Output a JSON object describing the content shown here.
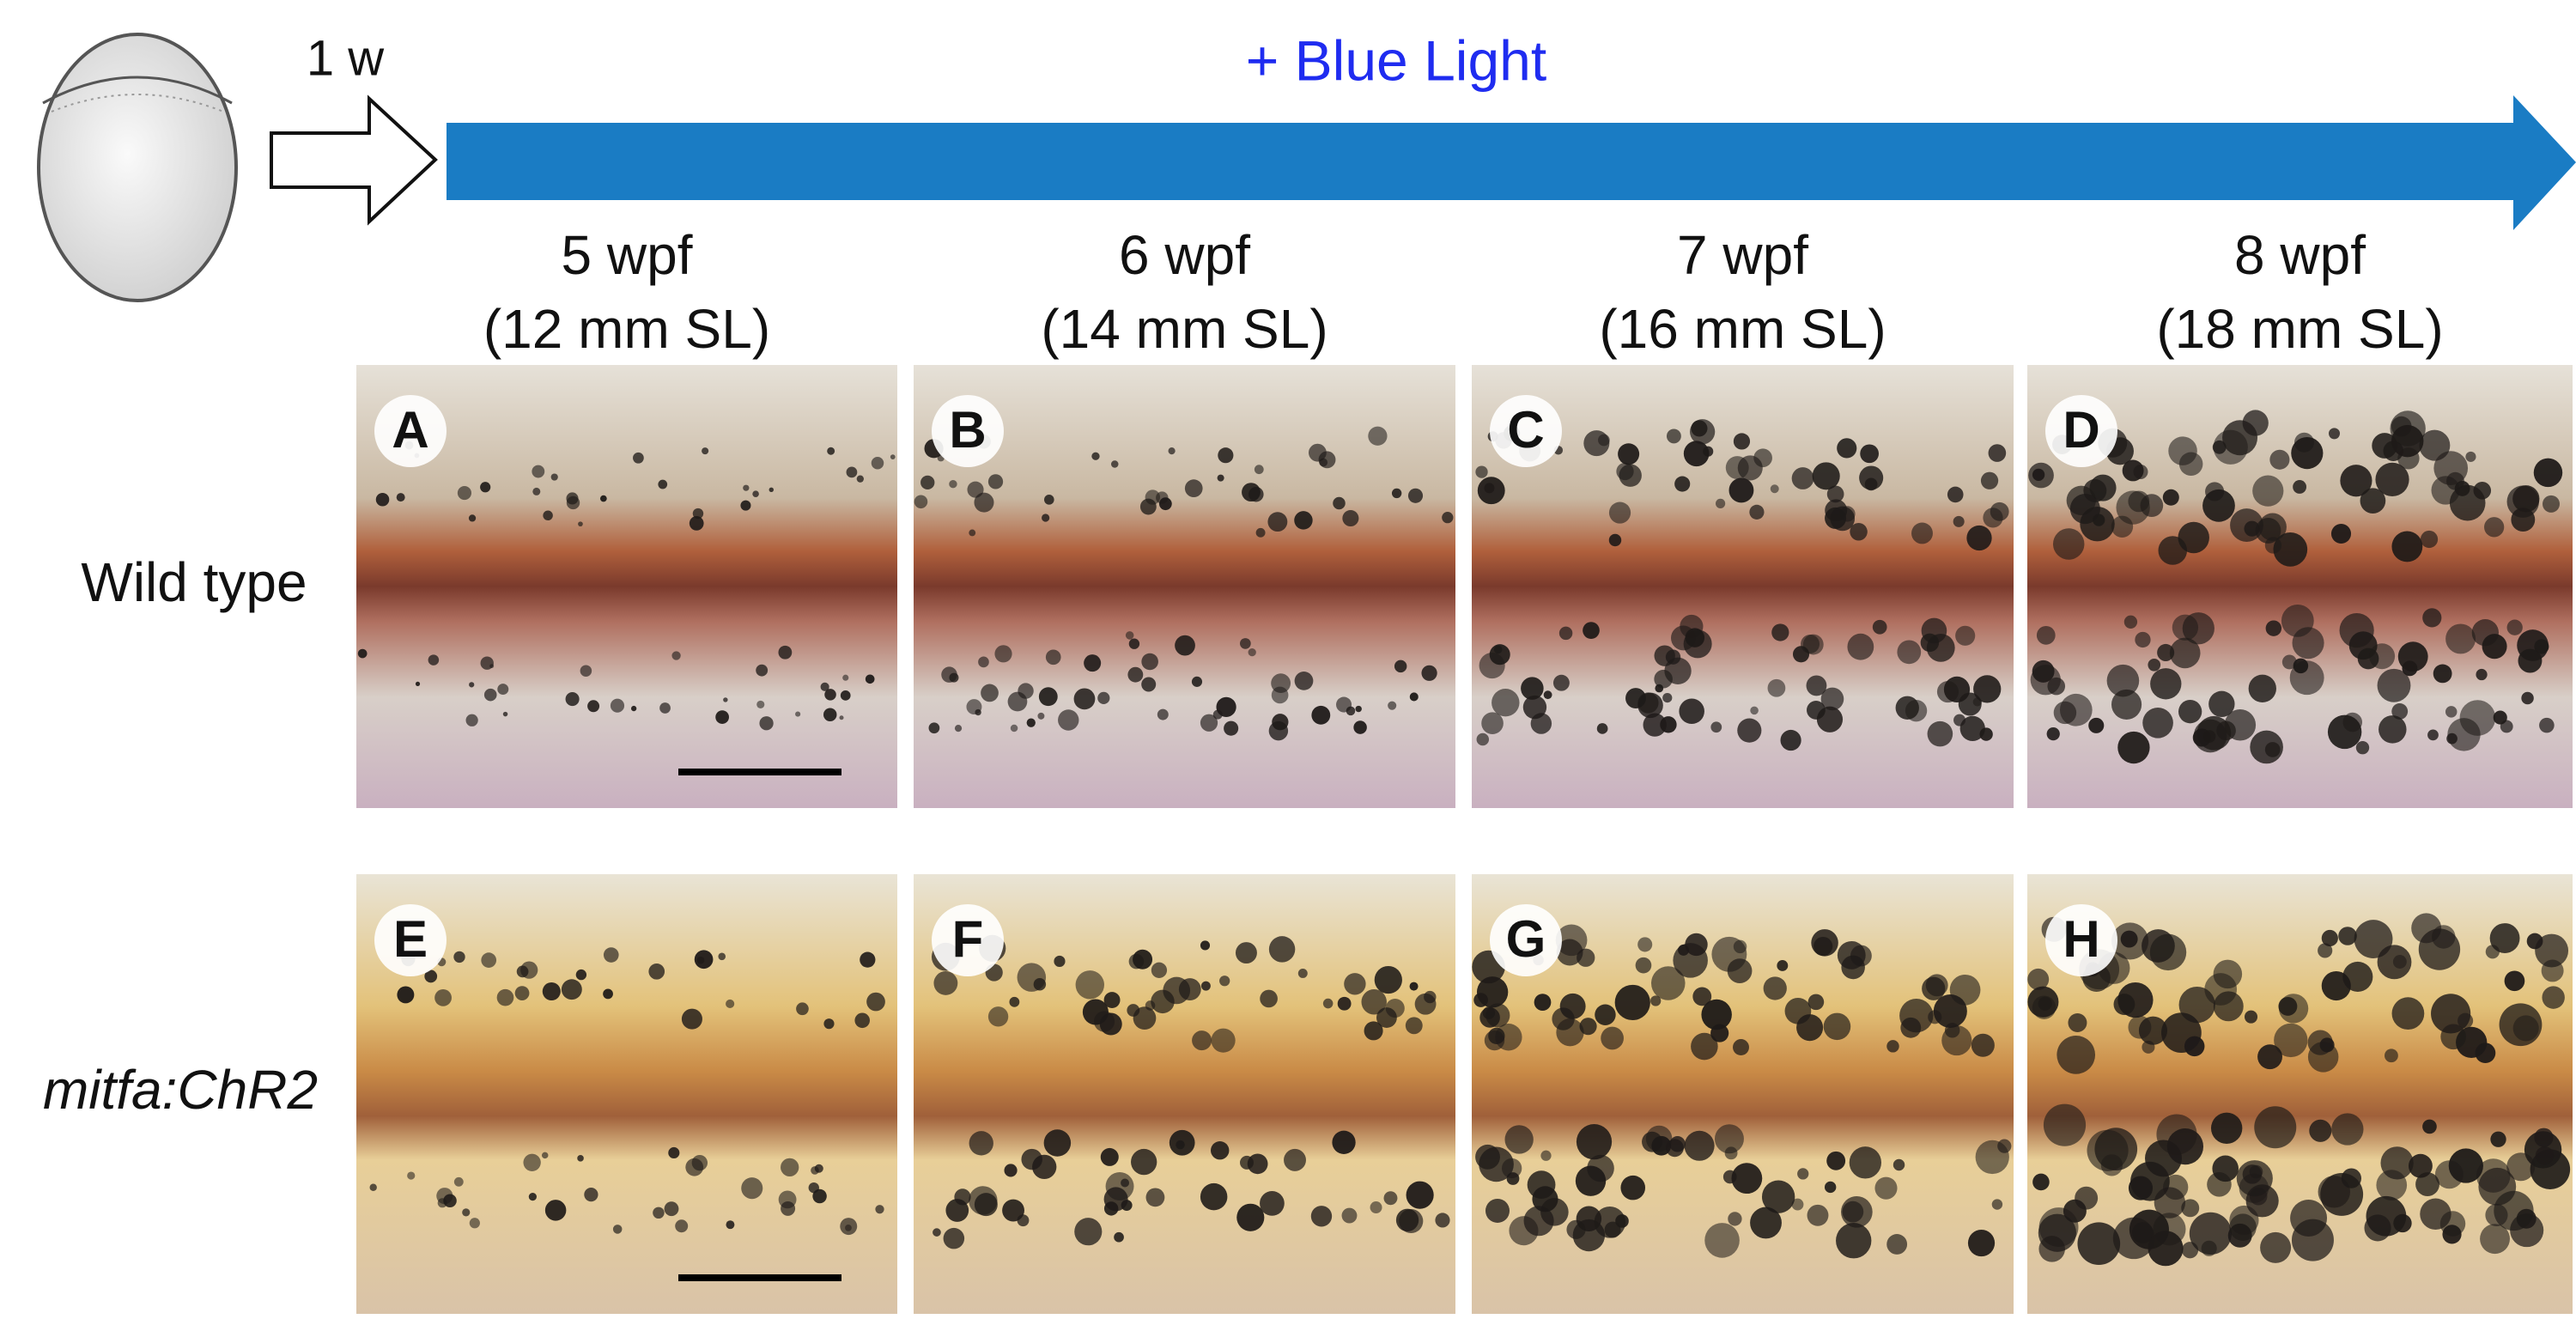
{
  "header": {
    "time_label": "1 w",
    "treatment": "+ Blue Light"
  },
  "columns": [
    {
      "age": "5 wpf",
      "length": "(12 mm SL)"
    },
    {
      "age": "6 wpf",
      "length": "(14 mm SL)"
    },
    {
      "age": "7 wpf",
      "length": "(16 mm SL)"
    },
    {
      "age": "8 wpf",
      "length": "(18 mm SL)"
    }
  ],
  "rows": [
    {
      "label": "Wild type",
      "panels": [
        "A",
        "B",
        "C",
        "D"
      ]
    },
    {
      "label": "mitfa:ChR2",
      "panels": [
        "E",
        "F",
        "G",
        "H"
      ]
    }
  ]
}
